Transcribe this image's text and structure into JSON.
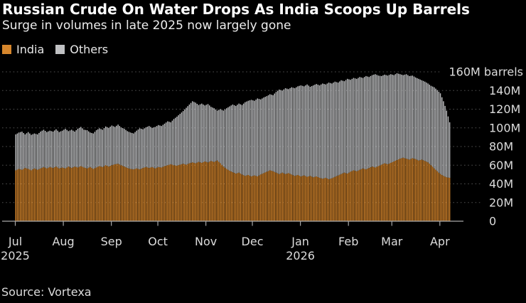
{
  "title": "Russian Crude On Water Drops As India Scoops Up Barrels",
  "subtitle": "Surge in volumes in late 2025 now largely gone",
  "source": "Source: Vortexa",
  "legend": [
    {
      "label": "India",
      "color": "#d6862c"
    },
    {
      "label": "Others",
      "color": "#c0c1c3"
    }
  ],
  "colors": {
    "background": "#000000",
    "india_bar": "#d6862c",
    "others_bar": "#c0c1c3",
    "gridline": "#4f4f4f",
    "axis": "#a8a8a8",
    "axis_text": "#dcdcdc",
    "title_text": "#ffffff"
  },
  "chart_data": {
    "type": "bar",
    "stacked": true,
    "unit": "M barrels",
    "x_start": "2025-07-01",
    "x_end": "2026-04-07",
    "days": 281,
    "sample_step_days": 2,
    "ylim": [
      0,
      160
    ],
    "grid": "dotted-horizontal",
    "legend_position": "top-left",
    "y_tick_values": [
      160,
      140,
      120,
      100,
      80,
      60,
      40,
      20,
      0
    ],
    "y_tick_labels": [
      "160M barrels",
      "140M",
      "120M",
      "100M",
      "80M",
      "60M",
      "40M",
      "20M",
      "0"
    ],
    "x_tick_labels": [
      "Jul",
      "Aug",
      "Sep",
      "Oct",
      "Nov",
      "Dec",
      "Jan",
      "Feb",
      "Mar",
      "Apr"
    ],
    "x_tick_days": [
      0,
      31,
      62,
      92,
      123,
      153,
      184,
      215,
      243,
      274
    ],
    "year_labels": [
      {
        "label": "2025",
        "month_index": 0
      },
      {
        "label": "2026",
        "month_index": 6
      }
    ],
    "series": [
      {
        "name": "India",
        "color": "#d6862c",
        "values": [
          54.5,
          56,
          55,
          57,
          56,
          54.5,
          56.5,
          55,
          56.5,
          58,
          56.5,
          58,
          57,
          58.5,
          56.5,
          57.5,
          56.5,
          58.5,
          57,
          58.5,
          57.5,
          59,
          57.5,
          56.5,
          58,
          56,
          57.5,
          59,
          58,
          60,
          58.5,
          60,
          61,
          61.5,
          60,
          58.5,
          57,
          56,
          55.5,
          56.5,
          55.5,
          57,
          58,
          57,
          58,
          56.5,
          58,
          57.5,
          59,
          60,
          61,
          60,
          59.5,
          60.5,
          61.5,
          60.5,
          62,
          63,
          62,
          63.5,
          62.5,
          64,
          63,
          64.5,
          63.5,
          65,
          62,
          58.5,
          56,
          54,
          52.5,
          51,
          52,
          50,
          48.5,
          49.5,
          48,
          49,
          48,
          50,
          51.5,
          53,
          54.5,
          53.5,
          52,
          50.5,
          52,
          50.5,
          51.5,
          50,
          48.5,
          49.5,
          48,
          49,
          47.5,
          48.5,
          47,
          48,
          46.5,
          45.5,
          46.5,
          45,
          46,
          47.5,
          49,
          50.5,
          52,
          51,
          53,
          54.5,
          53.5,
          55,
          56.5,
          55.5,
          57,
          58.5,
          57.5,
          59,
          60.5,
          62,
          61,
          62.5,
          64,
          65.5,
          67,
          68,
          67,
          66,
          67.5,
          66.5,
          65,
          66,
          64.5,
          63,
          60,
          56.5,
          53.5,
          50.5,
          48.5,
          47,
          46.5
        ]
      },
      {
        "name": "Others",
        "color": "#c0c1c3",
        "values": [
          38.5,
          39,
          41,
          36,
          39.5,
          38,
          37.5,
          38,
          39.5,
          40,
          39,
          39,
          39,
          40,
          39,
          39.5,
          42.5,
          38,
          41,
          37.5,
          41.5,
          42,
          40.5,
          41,
          37,
          38,
          40,
          40.5,
          40,
          41.5,
          41.5,
          42.5,
          40,
          42,
          40.5,
          40.5,
          39.5,
          39,
          38.5,
          40.5,
          44,
          41.5,
          42.5,
          45,
          42,
          44.5,
          45,
          44.5,
          45.5,
          47,
          45,
          49.5,
          52.5,
          54.5,
          56.5,
          61,
          63,
          65.5,
          65,
          61,
          63.5,
          60,
          62.5,
          58,
          57.5,
          53.5,
          58,
          60,
          65,
          69,
          72.5,
          72.5,
          74,
          74.5,
          79,
          79.5,
          82,
          80,
          83.5,
          80.5,
          81,
          81,
          81.5,
          81.5,
          86.5,
          90.5,
          88,
          92,
          90,
          93.5,
          94,
          95,
          97.5,
          95.5,
          99,
          95.5,
          98.5,
          99,
          99,
          102,
          100,
          103.5,
          101.5,
          102,
          99.5,
          100.5,
          98,
          101.5,
          98.5,
          99,
          99,
          99.5,
          97,
          100,
          97.5,
          98,
          100,
          97,
          95,
          95,
          95,
          95,
          92.5,
          93,
          90.5,
          88.5,
          90.5,
          89.5,
          88.5,
          87.5,
          87.5,
          85,
          85,
          84.5,
          85,
          87,
          87,
          86.5,
          80,
          71.5,
          59.5
        ]
      }
    ]
  }
}
